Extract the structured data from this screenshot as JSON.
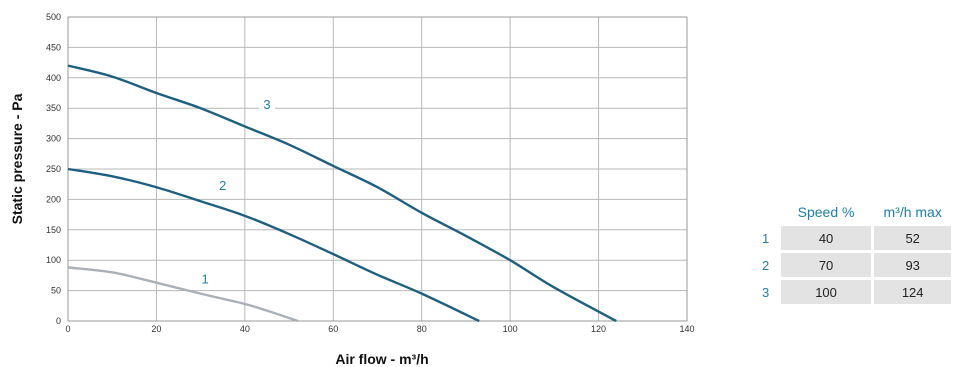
{
  "chart_data": {
    "type": "line",
    "xlabel": "Air flow - m³/h",
    "ylabel": "Static pressure - Pa",
    "xlim": [
      0,
      140
    ],
    "ylim": [
      0,
      500
    ],
    "x_ticks": [
      "0",
      "20",
      "40",
      "60",
      "80",
      "100",
      "120",
      "140"
    ],
    "y_ticks": [
      "0",
      "50",
      "100",
      "150",
      "200",
      "250",
      "300",
      "350",
      "400",
      "450",
      "500"
    ],
    "grid": true,
    "series": [
      {
        "name": "1",
        "color": "#a9b0b8",
        "points": [
          [
            0,
            88
          ],
          [
            10,
            80
          ],
          [
            20,
            63
          ],
          [
            30,
            45
          ],
          [
            40,
            28
          ],
          [
            45,
            17
          ],
          [
            52,
            0
          ]
        ]
      },
      {
        "name": "2",
        "color": "#1f5f80",
        "points": [
          [
            0,
            250
          ],
          [
            10,
            238
          ],
          [
            20,
            220
          ],
          [
            30,
            197
          ],
          [
            40,
            173
          ],
          [
            50,
            143
          ],
          [
            60,
            110
          ],
          [
            70,
            76
          ],
          [
            80,
            45
          ],
          [
            93,
            0
          ]
        ]
      },
      {
        "name": "3",
        "color": "#1f5f80",
        "points": [
          [
            0,
            420
          ],
          [
            10,
            402
          ],
          [
            20,
            375
          ],
          [
            30,
            350
          ],
          [
            40,
            320
          ],
          [
            50,
            290
          ],
          [
            60,
            255
          ],
          [
            70,
            220
          ],
          [
            80,
            178
          ],
          [
            90,
            140
          ],
          [
            100,
            100
          ],
          [
            110,
            55
          ],
          [
            124,
            0
          ]
        ]
      }
    ],
    "curve_labels": [
      {
        "text": "1",
        "x": 31,
        "y": 63,
        "color": "#1f7fa8"
      },
      {
        "text": "2",
        "x": 35,
        "y": 217,
        "color": "#1f7fa8"
      },
      {
        "text": "3",
        "x": 45,
        "y": 350,
        "color": "#1f7fa8"
      }
    ]
  },
  "table": {
    "headers": [
      "Speed %",
      "m³/h max"
    ],
    "rows": [
      {
        "index": "1",
        "speed": "40",
        "max": "52"
      },
      {
        "index": "2",
        "speed": "70",
        "max": "93"
      },
      {
        "index": "3",
        "speed": "100",
        "max": "124"
      }
    ]
  }
}
